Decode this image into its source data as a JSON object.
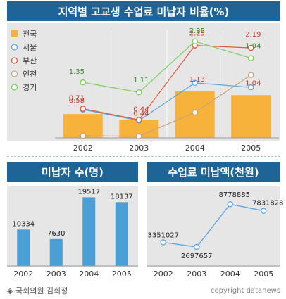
{
  "footer": {
    "source": "◈ 국회의원 김희정",
    "copyright": "copyright datanews"
  },
  "chart_data": [
    {
      "type": "bar+line",
      "title": "지역별 고교생 수업료 미납자 비율(%)",
      "categories": [
        "2002",
        "2003",
        "2004",
        "2005"
      ],
      "ylim": [
        0,
        2.5
      ],
      "bar_series": {
        "name": "전국",
        "values": [
          0.58,
          0.44,
          1.13,
          1.04
        ],
        "color": "#f7b23b"
      },
      "line_series": [
        {
          "name": "서울",
          "values": [
            0.69,
            0.42,
            1.34,
            1.23
          ],
          "color": "#5aa6de"
        },
        {
          "name": "부산",
          "values": [
            0.71,
            0.44,
            2.25,
            2.19
          ],
          "color": "#e15a3c"
        },
        {
          "name": "인천",
          "values": [
            0.05,
            0.04,
            0.62,
            1.53
          ],
          "color": "#c8a27e"
        },
        {
          "name": "경기",
          "values": [
            1.35,
            1.11,
            2.35,
            1.94
          ],
          "color": "#7bcf5a"
        }
      ],
      "labels": [
        {
          "text": "1.35",
          "cat": 0,
          "value": 1.35,
          "color": "#3a8a28"
        },
        {
          "text": "1.11",
          "cat": 1,
          "value": 1.11,
          "color": "#3a8a28"
        },
        {
          "text": "2.35",
          "cat": 2,
          "value": 2.35,
          "color": "#3a8a28"
        },
        {
          "text": "1.94",
          "cat": 3,
          "value": 1.94,
          "color": "#3a8a28"
        },
        {
          "text": "0.71",
          "cat": 0,
          "value": 0.71,
          "color": "#c0392b"
        },
        {
          "text": "0.44",
          "cat": 1,
          "value": 0.44,
          "color": "#c0392b"
        },
        {
          "text": "2.25",
          "cat": 2,
          "value": 2.25,
          "color": "#c0392b"
        },
        {
          "text": "2.19",
          "cat": 3,
          "value": 2.19,
          "color": "#c0392b"
        },
        {
          "text": "0.58",
          "cat": 0,
          "value": 0.58,
          "color": "#c0392b"
        },
        {
          "text": "0.44",
          "cat": 1,
          "value": 0.44,
          "color": "#c0392b"
        },
        {
          "text": "1.13",
          "cat": 2,
          "value": 1.13,
          "color": "#c0392b"
        },
        {
          "text": "1.04",
          "cat": 3,
          "value": 1.04,
          "color": "#c0392b"
        }
      ]
    },
    {
      "type": "bar",
      "title": "미납자 수(명)",
      "categories": [
        "2002",
        "2003",
        "2004",
        "2005"
      ],
      "values": [
        10334,
        7630,
        19517,
        18137
      ],
      "ylim": [
        0,
        22000
      ],
      "color": "#4a9fd4"
    },
    {
      "type": "line",
      "title": "수업료 미납액(천원)",
      "categories": [
        "2002",
        "2003",
        "2004",
        "2005"
      ],
      "values": [
        3351027,
        2697657,
        8778885,
        7831828
      ],
      "ylim": [
        0,
        11000000
      ],
      "color": "#5aa6de"
    }
  ]
}
